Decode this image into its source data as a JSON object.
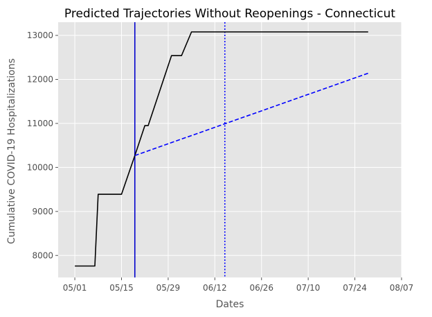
{
  "chart_data": {
    "type": "line",
    "title": "Predicted Trajectories Without Reopenings - Connecticut",
    "xlabel": "Dates",
    "ylabel": "Cumulative COVID-19 Hospitalizations",
    "x_axis": {
      "type": "date",
      "range": [
        "2020-04-26",
        "2020-08-07"
      ],
      "ticks": [
        {
          "date": "2020-05-01",
          "label": "05/01"
        },
        {
          "date": "2020-05-15",
          "label": "05/15"
        },
        {
          "date": "2020-05-29",
          "label": "05/29"
        },
        {
          "date": "2020-06-12",
          "label": "06/12"
        },
        {
          "date": "2020-06-26",
          "label": "06/26"
        },
        {
          "date": "2020-07-10",
          "label": "07/10"
        },
        {
          "date": "2020-07-24",
          "label": "07/24"
        },
        {
          "date": "2020-08-07",
          "label": "08/07"
        }
      ]
    },
    "y_axis": {
      "range": [
        7500,
        13300
      ],
      "ticks": [
        8000,
        9000,
        10000,
        11000,
        12000,
        13000
      ]
    },
    "grid": true,
    "background": "#e5e5e5",
    "series": [
      {
        "color": "#000000",
        "style": "solid",
        "points": [
          {
            "x": "2020-05-01",
            "y": 7760
          },
          {
            "x": "2020-05-07",
            "y": 7760
          },
          {
            "x": "2020-05-08",
            "y": 9390
          },
          {
            "x": "2020-05-15",
            "y": 9390
          },
          {
            "x": "2020-05-19",
            "y": 10270
          },
          {
            "x": "2020-05-22",
            "y": 10950
          },
          {
            "x": "2020-05-23",
            "y": 10950
          },
          {
            "x": "2020-05-30",
            "y": 12540
          },
          {
            "x": "2020-06-02",
            "y": 12540
          },
          {
            "x": "2020-06-05",
            "y": 13080
          },
          {
            "x": "2020-07-28",
            "y": 13080
          }
        ]
      },
      {
        "color": "#0000ff",
        "style": "dashed",
        "points": [
          {
            "x": "2020-05-19",
            "y": 10270
          },
          {
            "x": "2020-07-28",
            "y": 12140
          }
        ]
      }
    ],
    "reference_lines": [
      {
        "x": "2020-05-19",
        "color": "#0000cc",
        "style": "solid"
      },
      {
        "x": "2020-06-15",
        "color": "#0000ff",
        "style": "dotted"
      }
    ]
  }
}
